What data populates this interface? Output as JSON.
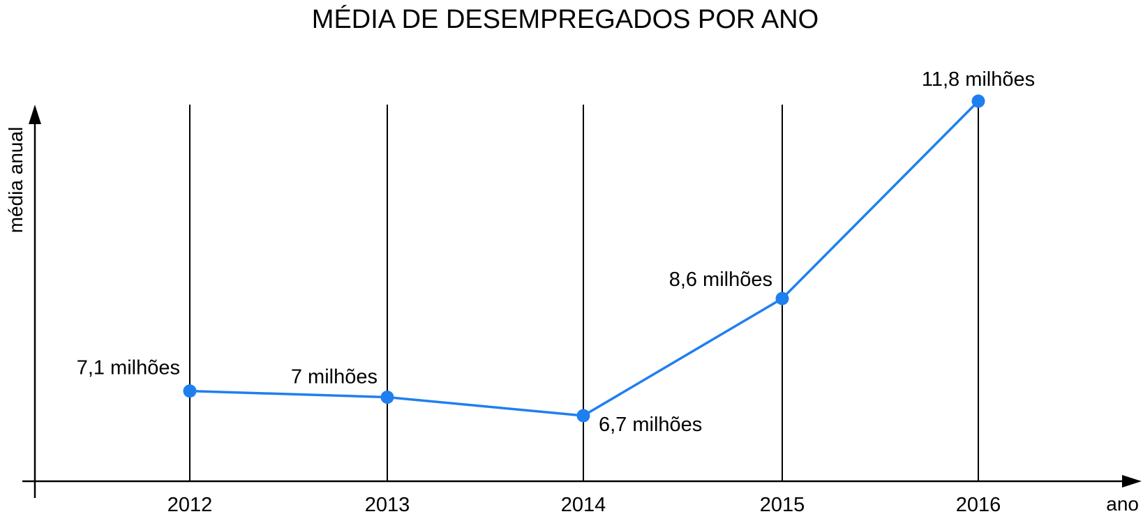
{
  "chart_data": {
    "type": "line",
    "title": "MÉDIA DE DESEMPREGADOS POR ANO",
    "xlabel": "ano",
    "ylabel": "média anual",
    "categories": [
      "2012",
      "2013",
      "2014",
      "2015",
      "2016"
    ],
    "series": [
      {
        "values": [
          7.1,
          7.0,
          6.7,
          8.6,
          11.8
        ],
        "data_labels": [
          "7,1 milhões",
          "7 milhões",
          "6,7 milhões",
          "8,6 milhões",
          "11,8 milhões"
        ]
      }
    ],
    "unit": "milhões",
    "grid": "vertical",
    "y_tick_labels": false,
    "line_color": "#1f7fef",
    "point_color": "#1f7fef",
    "axis_color": "#000000"
  }
}
